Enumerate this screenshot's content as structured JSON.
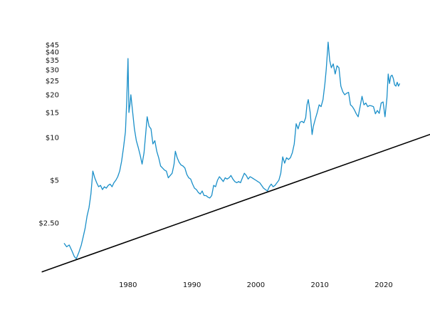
{
  "chart_data": {
    "type": "line",
    "title": "",
    "xlabel": "",
    "ylabel": "",
    "yscale": "log",
    "grid": false,
    "xlim": [
      1968,
      2026
    ],
    "ylim": [
      1.2,
      50
    ],
    "x_tick_labels": [
      {
        "value": 1980,
        "label": "1980"
      },
      {
        "value": 1990,
        "label": "1990"
      },
      {
        "value": 2000,
        "label": "2000"
      },
      {
        "value": 2010,
        "label": "2010"
      },
      {
        "value": 2020,
        "label": "2020"
      }
    ],
    "y_tick_labels": [
      {
        "value": 45,
        "label": "$45"
      },
      {
        "value": 40,
        "label": "$40"
      },
      {
        "value": 35,
        "label": "$35"
      },
      {
        "value": 30,
        "label": "$30"
      },
      {
        "value": 25,
        "label": "$25"
      },
      {
        "value": 20,
        "label": "$20"
      },
      {
        "value": 15,
        "label": "$15"
      },
      {
        "value": 10,
        "label": "$10"
      },
      {
        "value": 5,
        "label": "$5"
      },
      {
        "value": 2.5,
        "label": "$2.50"
      }
    ],
    "series": [
      {
        "color": "#1a8fc9",
        "points": [
          [
            1970.0,
            1.8
          ],
          [
            1970.4,
            1.7
          ],
          [
            1970.8,
            1.75
          ],
          [
            1971.2,
            1.6
          ],
          [
            1971.6,
            1.45
          ],
          [
            1971.9,
            1.4
          ],
          [
            1972.3,
            1.55
          ],
          [
            1972.7,
            1.75
          ],
          [
            1973.0,
            2.0
          ],
          [
            1973.3,
            2.3
          ],
          [
            1973.6,
            2.8
          ],
          [
            1973.9,
            3.2
          ],
          [
            1974.2,
            4.0
          ],
          [
            1974.5,
            5.8
          ],
          [
            1974.8,
            5.2
          ],
          [
            1975.1,
            4.8
          ],
          [
            1975.4,
            4.5
          ],
          [
            1975.7,
            4.6
          ],
          [
            1976.0,
            4.3
          ],
          [
            1976.3,
            4.5
          ],
          [
            1976.6,
            4.4
          ],
          [
            1976.9,
            4.6
          ],
          [
            1977.2,
            4.7
          ],
          [
            1977.5,
            4.5
          ],
          [
            1977.8,
            4.8
          ],
          [
            1978.1,
            5.0
          ],
          [
            1978.4,
            5.3
          ],
          [
            1978.7,
            5.8
          ],
          [
            1979.0,
            6.8
          ],
          [
            1979.3,
            8.5
          ],
          [
            1979.6,
            11.0
          ],
          [
            1979.8,
            18.0
          ],
          [
            1980.0,
            36.0
          ],
          [
            1980.15,
            15.0
          ],
          [
            1980.3,
            17.0
          ],
          [
            1980.45,
            20.0
          ],
          [
            1980.7,
            15.5
          ],
          [
            1981.0,
            11.5
          ],
          [
            1981.3,
            9.5
          ],
          [
            1981.6,
            8.5
          ],
          [
            1981.9,
            7.5
          ],
          [
            1982.2,
            6.5
          ],
          [
            1982.5,
            7.8
          ],
          [
            1982.8,
            11.0
          ],
          [
            1983.0,
            14.0
          ],
          [
            1983.3,
            12.0
          ],
          [
            1983.6,
            11.5
          ],
          [
            1983.9,
            9.0
          ],
          [
            1984.2,
            9.5
          ],
          [
            1984.5,
            8.0
          ],
          [
            1984.8,
            7.2
          ],
          [
            1985.1,
            6.3
          ],
          [
            1985.4,
            6.1
          ],
          [
            1985.7,
            5.9
          ],
          [
            1986.0,
            5.8
          ],
          [
            1986.3,
            5.2
          ],
          [
            1986.6,
            5.4
          ],
          [
            1986.9,
            5.6
          ],
          [
            1987.2,
            6.5
          ],
          [
            1987.4,
            8.0
          ],
          [
            1987.7,
            7.2
          ],
          [
            1988.0,
            6.7
          ],
          [
            1988.3,
            6.4
          ],
          [
            1988.6,
            6.3
          ],
          [
            1988.9,
            6.1
          ],
          [
            1989.2,
            5.5
          ],
          [
            1989.5,
            5.2
          ],
          [
            1989.8,
            5.1
          ],
          [
            1990.1,
            4.7
          ],
          [
            1990.4,
            4.4
          ],
          [
            1990.7,
            4.3
          ],
          [
            1991.0,
            4.1
          ],
          [
            1991.3,
            4.0
          ],
          [
            1991.6,
            4.2
          ],
          [
            1991.9,
            3.9
          ],
          [
            1992.2,
            3.9
          ],
          [
            1992.5,
            3.8
          ],
          [
            1992.8,
            3.75
          ],
          [
            1993.1,
            3.9
          ],
          [
            1993.4,
            4.6
          ],
          [
            1993.7,
            4.5
          ],
          [
            1994.0,
            5.0
          ],
          [
            1994.3,
            5.3
          ],
          [
            1994.6,
            5.1
          ],
          [
            1994.9,
            4.9
          ],
          [
            1995.2,
            5.2
          ],
          [
            1995.5,
            5.1
          ],
          [
            1995.8,
            5.2
          ],
          [
            1996.1,
            5.4
          ],
          [
            1996.4,
            5.1
          ],
          [
            1996.7,
            4.9
          ],
          [
            1997.0,
            4.8
          ],
          [
            1997.3,
            4.9
          ],
          [
            1997.6,
            4.8
          ],
          [
            1997.9,
            5.2
          ],
          [
            1998.2,
            5.6
          ],
          [
            1998.5,
            5.4
          ],
          [
            1998.8,
            5.1
          ],
          [
            1999.1,
            5.3
          ],
          [
            1999.4,
            5.2
          ],
          [
            1999.7,
            5.1
          ],
          [
            2000.0,
            5.0
          ],
          [
            2000.3,
            4.9
          ],
          [
            2000.6,
            4.8
          ],
          [
            2000.9,
            4.6
          ],
          [
            2001.2,
            4.4
          ],
          [
            2001.5,
            4.3
          ],
          [
            2001.8,
            4.2
          ],
          [
            2002.1,
            4.5
          ],
          [
            2002.4,
            4.7
          ],
          [
            2002.7,
            4.5
          ],
          [
            2003.0,
            4.6
          ],
          [
            2003.3,
            4.8
          ],
          [
            2003.6,
            5.0
          ],
          [
            2003.9,
            5.6
          ],
          [
            2004.2,
            7.3
          ],
          [
            2004.5,
            6.6
          ],
          [
            2004.8,
            7.2
          ],
          [
            2005.1,
            7.0
          ],
          [
            2005.4,
            7.2
          ],
          [
            2005.7,
            7.8
          ],
          [
            2006.0,
            9.0
          ],
          [
            2006.3,
            12.5
          ],
          [
            2006.6,
            11.5
          ],
          [
            2006.9,
            12.8
          ],
          [
            2007.2,
            13.0
          ],
          [
            2007.5,
            12.7
          ],
          [
            2007.8,
            13.8
          ],
          [
            2008.0,
            17.0
          ],
          [
            2008.2,
            18.5
          ],
          [
            2008.5,
            15.0
          ],
          [
            2008.8,
            10.5
          ],
          [
            2009.0,
            12.0
          ],
          [
            2009.3,
            13.5
          ],
          [
            2009.6,
            15.0
          ],
          [
            2009.9,
            17.0
          ],
          [
            2010.2,
            16.5
          ],
          [
            2010.5,
            18.5
          ],
          [
            2010.8,
            24.0
          ],
          [
            2011.0,
            30.0
          ],
          [
            2011.3,
            47.0
          ],
          [
            2011.55,
            35.0
          ],
          [
            2011.8,
            31.0
          ],
          [
            2012.1,
            33.0
          ],
          [
            2012.4,
            28.0
          ],
          [
            2012.7,
            32.0
          ],
          [
            2013.0,
            31.0
          ],
          [
            2013.3,
            23.0
          ],
          [
            2013.6,
            21.0
          ],
          [
            2013.9,
            20.0
          ],
          [
            2014.2,
            20.5
          ],
          [
            2014.5,
            20.8
          ],
          [
            2014.8,
            17.0
          ],
          [
            2015.1,
            16.5
          ],
          [
            2015.4,
            15.7
          ],
          [
            2015.7,
            14.7
          ],
          [
            2016.0,
            14.0
          ],
          [
            2016.3,
            16.5
          ],
          [
            2016.6,
            19.5
          ],
          [
            2016.9,
            17.0
          ],
          [
            2017.2,
            17.5
          ],
          [
            2017.5,
            16.5
          ],
          [
            2017.8,
            16.8
          ],
          [
            2018.1,
            16.7
          ],
          [
            2018.4,
            16.5
          ],
          [
            2018.7,
            14.7
          ],
          [
            2019.0,
            15.5
          ],
          [
            2019.3,
            14.8
          ],
          [
            2019.6,
            17.5
          ],
          [
            2019.9,
            17.8
          ],
          [
            2020.2,
            14.0
          ],
          [
            2020.5,
            19.0
          ],
          [
            2020.7,
            28.0
          ],
          [
            2020.9,
            24.0
          ],
          [
            2021.1,
            27.0
          ],
          [
            2021.3,
            27.5
          ],
          [
            2021.5,
            26.0
          ],
          [
            2021.7,
            23.5
          ],
          [
            2021.9,
            23.0
          ],
          [
            2022.1,
            24.5
          ],
          [
            2022.3,
            23.0
          ],
          [
            2022.5,
            24.0
          ]
        ]
      },
      {
        "color": "#000000",
        "points": [
          [
            1966.5,
            1.13
          ],
          [
            2028.0,
            10.8
          ]
        ]
      }
    ]
  }
}
